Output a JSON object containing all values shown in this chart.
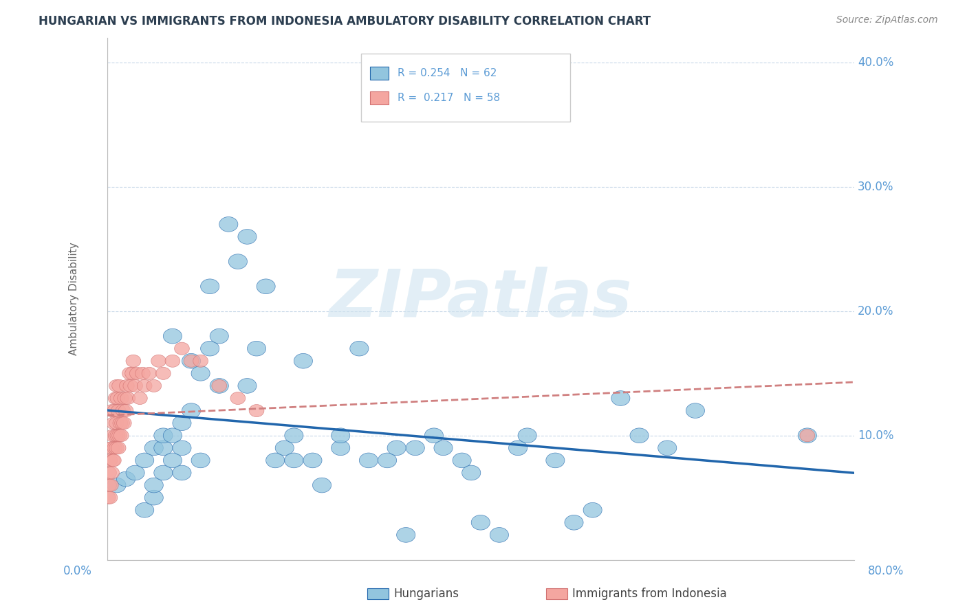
{
  "title": "HUNGARIAN VS IMMIGRANTS FROM INDONESIA AMBULATORY DISABILITY CORRELATION CHART",
  "source": "Source: ZipAtlas.com",
  "ylabel": "Ambulatory Disability",
  "xlim": [
    0.0,
    0.8
  ],
  "ylim": [
    0.0,
    0.42
  ],
  "legend_r1": "R = 0.254",
  "legend_n1": "N = 62",
  "legend_r2": "R =  0.217",
  "legend_n2": "N = 58",
  "color_blue": "#92c5de",
  "color_pink": "#f4a6a0",
  "color_blue_line": "#2166ac",
  "color_pink_line": "#d6604d",
  "color_grid": "#c8d8e8",
  "color_title": "#2c3e50",
  "color_axis_label": "#5b9bd5",
  "watermark": "ZIPatlas",
  "blue_points_x": [
    0.01,
    0.02,
    0.03,
    0.04,
    0.04,
    0.05,
    0.05,
    0.05,
    0.06,
    0.06,
    0.06,
    0.07,
    0.07,
    0.07,
    0.08,
    0.08,
    0.08,
    0.09,
    0.09,
    0.1,
    0.1,
    0.11,
    0.11,
    0.12,
    0.12,
    0.13,
    0.14,
    0.15,
    0.15,
    0.16,
    0.17,
    0.18,
    0.19,
    0.2,
    0.2,
    0.21,
    0.22,
    0.23,
    0.25,
    0.25,
    0.27,
    0.28,
    0.3,
    0.31,
    0.32,
    0.33,
    0.35,
    0.36,
    0.38,
    0.39,
    0.4,
    0.42,
    0.44,
    0.45,
    0.48,
    0.5,
    0.52,
    0.55,
    0.57,
    0.6,
    0.63,
    0.75
  ],
  "blue_points_y": [
    0.06,
    0.065,
    0.07,
    0.04,
    0.08,
    0.05,
    0.06,
    0.09,
    0.07,
    0.09,
    0.1,
    0.08,
    0.1,
    0.18,
    0.11,
    0.07,
    0.09,
    0.12,
    0.16,
    0.08,
    0.15,
    0.17,
    0.22,
    0.14,
    0.18,
    0.27,
    0.24,
    0.26,
    0.14,
    0.17,
    0.22,
    0.08,
    0.09,
    0.08,
    0.1,
    0.16,
    0.08,
    0.06,
    0.09,
    0.1,
    0.17,
    0.08,
    0.08,
    0.09,
    0.02,
    0.09,
    0.1,
    0.09,
    0.08,
    0.07,
    0.03,
    0.02,
    0.09,
    0.1,
    0.08,
    0.03,
    0.04,
    0.13,
    0.1,
    0.09,
    0.12,
    0.1
  ],
  "pink_points_x": [
    0.001,
    0.002,
    0.002,
    0.003,
    0.003,
    0.004,
    0.004,
    0.005,
    0.005,
    0.005,
    0.006,
    0.006,
    0.007,
    0.007,
    0.008,
    0.008,
    0.009,
    0.009,
    0.01,
    0.01,
    0.01,
    0.011,
    0.011,
    0.012,
    0.012,
    0.013,
    0.013,
    0.014,
    0.015,
    0.015,
    0.016,
    0.017,
    0.018,
    0.019,
    0.02,
    0.021,
    0.022,
    0.024,
    0.025,
    0.027,
    0.028,
    0.03,
    0.032,
    0.035,
    0.038,
    0.04,
    0.045,
    0.05,
    0.055,
    0.06,
    0.07,
    0.08,
    0.09,
    0.1,
    0.12,
    0.14,
    0.16,
    0.75
  ],
  "pink_points_y": [
    0.05,
    0.06,
    0.07,
    0.05,
    0.08,
    0.06,
    0.09,
    0.07,
    0.09,
    0.12,
    0.08,
    0.1,
    0.08,
    0.11,
    0.09,
    0.12,
    0.1,
    0.13,
    0.09,
    0.11,
    0.14,
    0.1,
    0.13,
    0.09,
    0.12,
    0.1,
    0.14,
    0.11,
    0.1,
    0.13,
    0.11,
    0.12,
    0.11,
    0.13,
    0.12,
    0.14,
    0.13,
    0.15,
    0.14,
    0.15,
    0.16,
    0.14,
    0.15,
    0.13,
    0.15,
    0.14,
    0.15,
    0.14,
    0.16,
    0.15,
    0.16,
    0.17,
    0.16,
    0.16,
    0.14,
    0.13,
    0.12,
    0.1
  ]
}
